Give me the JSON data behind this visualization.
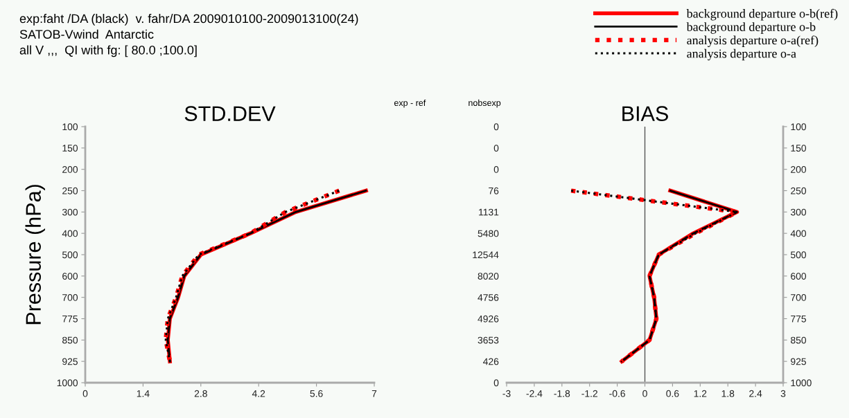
{
  "chart_data": [
    {
      "type": "line",
      "orientation": "horizontal",
      "title": "STD.DEV",
      "subtitle": "exp:faht /DA (black)  v. fahr/DA 2009010100-2009013100(24)\nSATOB-Vwind  Antarctic\nall V ,,,  QI with fg: [ 80.0 ;100.0]",
      "ylabel": "Pressure (hPa)",
      "legend": "top right",
      "grid": false,
      "categories": [
        "100",
        "150",
        "200",
        "250",
        "300",
        "400",
        "500",
        "600",
        "700",
        "775",
        "850",
        "925",
        "1000"
      ],
      "xlim": [
        0,
        7
      ],
      "xticks": [
        0,
        1.4,
        2.8,
        4.2,
        5.6,
        7
      ],
      "series": [
        {
          "name": "background departure o-b(ref)",
          "color": "#ff0000",
          "line_style": "solid",
          "values": [
            null,
            null,
            null,
            6.8,
            5.1,
            4.0,
            2.8,
            2.4,
            2.25,
            2.05,
            2.0,
            2.05,
            null
          ]
        },
        {
          "name": "background departure o-b",
          "color": "#000000",
          "line_style": "solid",
          "values": [
            null,
            null,
            null,
            6.8,
            5.1,
            4.0,
            2.8,
            2.4,
            2.25,
            2.05,
            2.0,
            2.05,
            null
          ]
        },
        {
          "name": "analysis departure o-a(ref)",
          "color": "#ff0000",
          "line_style": "dotted",
          "values": [
            null,
            null,
            null,
            6.15,
            4.85,
            4.0,
            2.75,
            2.35,
            2.2,
            2.0,
            1.95,
            2.05,
            null
          ]
        },
        {
          "name": "analysis departure o-a",
          "color": "#000000",
          "line_style": "dotted",
          "values": [
            null,
            null,
            null,
            6.15,
            4.85,
            4.0,
            2.75,
            2.35,
            2.2,
            2.0,
            1.95,
            2.05,
            null
          ]
        }
      ]
    },
    {
      "type": "line",
      "orientation": "horizontal",
      "title": "BIAS",
      "grid": false,
      "annotations": [
        "exp - ref",
        "nobsexp"
      ],
      "categories": [
        "0",
        "0",
        "0",
        "76",
        "1131",
        "5480",
        "12544",
        "8020",
        "4756",
        "4926",
        "3653",
        "426",
        "0"
      ],
      "y2_categories": [
        "100",
        "150",
        "200",
        "250",
        "300",
        "400",
        "500",
        "600",
        "700",
        "775",
        "850",
        "925",
        "1000"
      ],
      "xlim": [
        -3,
        3
      ],
      "xticks": [
        -3,
        -2.4,
        -1.8,
        -1.2,
        -0.6,
        0,
        0.6,
        1.2,
        1.8,
        2.4,
        3
      ],
      "ref_lines": [
        {
          "axis": "x",
          "value": 0,
          "color": "#555555"
        }
      ],
      "series": [
        {
          "color": "#ff0000",
          "line_style": "solid",
          "values": [
            null,
            null,
            null,
            0.55,
            2.0,
            1.05,
            0.3,
            0.1,
            0.2,
            0.25,
            0.1,
            -0.5,
            null
          ]
        },
        {
          "color": "#000000",
          "line_style": "solid",
          "values": [
            null,
            null,
            null,
            0.55,
            2.0,
            1.05,
            0.3,
            0.1,
            0.2,
            0.25,
            0.1,
            -0.5,
            null
          ]
        },
        {
          "color": "#ff0000",
          "line_style": "dotted",
          "values": [
            null,
            null,
            null,
            -1.6,
            2.0,
            1.1,
            0.3,
            0.1,
            0.2,
            0.25,
            0.1,
            -0.5,
            null
          ]
        },
        {
          "color": "#000000",
          "line_style": "dotted",
          "values": [
            null,
            null,
            null,
            -1.6,
            2.0,
            1.1,
            0.3,
            0.1,
            0.2,
            0.25,
            0.1,
            -0.5,
            null
          ]
        }
      ]
    }
  ]
}
